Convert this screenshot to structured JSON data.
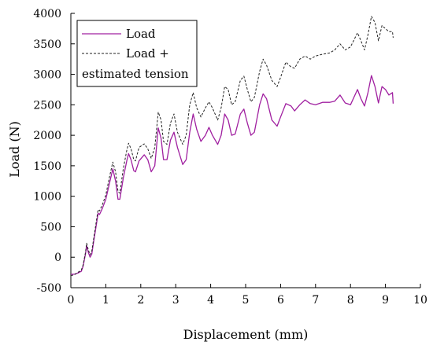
{
  "chart_data": {
    "type": "line",
    "title": "",
    "xlabel": "Displacement (mm)",
    "ylabel": "Load (N)",
    "xlim": [
      0,
      10
    ],
    "ylim": [
      -500,
      4000
    ],
    "xticks": [
      "0",
      "1",
      "2",
      "3",
      "4",
      "5",
      "6",
      "7",
      "8",
      "9",
      "10"
    ],
    "yticks": [
      "-500",
      "0",
      "500",
      "1000",
      "1500",
      "2000",
      "2500",
      "3000",
      "3500",
      "4000"
    ],
    "grid": false,
    "legend_position": "top-left",
    "legend": {
      "line1": "Load",
      "line2a": "Load +",
      "line2b": "estimated tension"
    },
    "series": [
      {
        "name": "Load",
        "color": "#a020a0",
        "style": "solid",
        "points": [
          [
            0.0,
            -280
          ],
          [
            0.1,
            -280
          ],
          [
            0.2,
            -260
          ],
          [
            0.3,
            -230
          ],
          [
            0.35,
            -150
          ],
          [
            0.42,
            50
          ],
          [
            0.45,
            190
          ],
          [
            0.5,
            80
          ],
          [
            0.55,
            0
          ],
          [
            0.6,
            50
          ],
          [
            0.65,
            250
          ],
          [
            0.72,
            500
          ],
          [
            0.78,
            720
          ],
          [
            0.82,
            700
          ],
          [
            0.9,
            800
          ],
          [
            1.0,
            950
          ],
          [
            1.1,
            1200
          ],
          [
            1.2,
            1450
          ],
          [
            1.28,
            1250
          ],
          [
            1.35,
            950
          ],
          [
            1.4,
            950
          ],
          [
            1.5,
            1300
          ],
          [
            1.6,
            1580
          ],
          [
            1.65,
            1700
          ],
          [
            1.72,
            1600
          ],
          [
            1.8,
            1420
          ],
          [
            1.85,
            1400
          ],
          [
            1.95,
            1580
          ],
          [
            2.1,
            1680
          ],
          [
            2.2,
            1600
          ],
          [
            2.3,
            1400
          ],
          [
            2.4,
            1500
          ],
          [
            2.5,
            2120
          ],
          [
            2.58,
            1950
          ],
          [
            2.65,
            1600
          ],
          [
            2.75,
            1600
          ],
          [
            2.85,
            1920
          ],
          [
            2.95,
            2050
          ],
          [
            3.05,
            1800
          ],
          [
            3.2,
            1520
          ],
          [
            3.3,
            1600
          ],
          [
            3.4,
            2050
          ],
          [
            3.5,
            2350
          ],
          [
            3.6,
            2100
          ],
          [
            3.72,
            1900
          ],
          [
            3.85,
            2000
          ],
          [
            3.95,
            2130
          ],
          [
            4.05,
            2000
          ],
          [
            4.2,
            1850
          ],
          [
            4.3,
            2000
          ],
          [
            4.4,
            2350
          ],
          [
            4.5,
            2250
          ],
          [
            4.6,
            2000
          ],
          [
            4.7,
            2020
          ],
          [
            4.85,
            2350
          ],
          [
            4.95,
            2430
          ],
          [
            5.05,
            2200
          ],
          [
            5.15,
            2000
          ],
          [
            5.25,
            2050
          ],
          [
            5.4,
            2500
          ],
          [
            5.5,
            2680
          ],
          [
            5.6,
            2600
          ],
          [
            5.75,
            2250
          ],
          [
            5.9,
            2150
          ],
          [
            6.0,
            2300
          ],
          [
            6.15,
            2520
          ],
          [
            6.3,
            2480
          ],
          [
            6.4,
            2400
          ],
          [
            6.55,
            2500
          ],
          [
            6.7,
            2580
          ],
          [
            6.85,
            2520
          ],
          [
            7.0,
            2500
          ],
          [
            7.2,
            2540
          ],
          [
            7.4,
            2540
          ],
          [
            7.55,
            2560
          ],
          [
            7.7,
            2660
          ],
          [
            7.85,
            2530
          ],
          [
            8.0,
            2500
          ],
          [
            8.2,
            2750
          ],
          [
            8.3,
            2600
          ],
          [
            8.4,
            2480
          ],
          [
            8.5,
            2700
          ],
          [
            8.6,
            2980
          ],
          [
            8.7,
            2800
          ],
          [
            8.8,
            2530
          ],
          [
            8.9,
            2800
          ],
          [
            9.0,
            2750
          ],
          [
            9.1,
            2660
          ],
          [
            9.2,
            2700
          ],
          [
            9.22,
            2520
          ]
        ]
      },
      {
        "name": "Load + estimated tension",
        "color": "#222222",
        "style": "dashed",
        "points": [
          [
            0.0,
            -300
          ],
          [
            0.1,
            -290
          ],
          [
            0.2,
            -250
          ],
          [
            0.3,
            -210
          ],
          [
            0.35,
            -130
          ],
          [
            0.42,
            80
          ],
          [
            0.45,
            230
          ],
          [
            0.5,
            120
          ],
          [
            0.55,
            40
          ],
          [
            0.6,
            100
          ],
          [
            0.65,
            300
          ],
          [
            0.72,
            560
          ],
          [
            0.78,
            780
          ],
          [
            0.82,
            760
          ],
          [
            0.9,
            860
          ],
          [
            1.0,
            1020
          ],
          [
            1.1,
            1300
          ],
          [
            1.2,
            1560
          ],
          [
            1.28,
            1400
          ],
          [
            1.35,
            1080
          ],
          [
            1.4,
            1050
          ],
          [
            1.5,
            1450
          ],
          [
            1.6,
            1750
          ],
          [
            1.65,
            1870
          ],
          [
            1.72,
            1780
          ],
          [
            1.8,
            1600
          ],
          [
            1.85,
            1580
          ],
          [
            1.95,
            1800
          ],
          [
            2.1,
            1860
          ],
          [
            2.2,
            1780
          ],
          [
            2.3,
            1620
          ],
          [
            2.4,
            1800
          ],
          [
            2.5,
            2380
          ],
          [
            2.58,
            2250
          ],
          [
            2.65,
            1900
          ],
          [
            2.75,
            1850
          ],
          [
            2.85,
            2200
          ],
          [
            2.95,
            2350
          ],
          [
            3.05,
            2050
          ],
          [
            3.2,
            1850
          ],
          [
            3.3,
            2000
          ],
          [
            3.4,
            2500
          ],
          [
            3.5,
            2700
          ],
          [
            3.6,
            2450
          ],
          [
            3.72,
            2300
          ],
          [
            3.85,
            2450
          ],
          [
            3.95,
            2550
          ],
          [
            4.05,
            2450
          ],
          [
            4.2,
            2250
          ],
          [
            4.3,
            2450
          ],
          [
            4.4,
            2800
          ],
          [
            4.5,
            2750
          ],
          [
            4.6,
            2500
          ],
          [
            4.7,
            2550
          ],
          [
            4.85,
            2900
          ],
          [
            4.95,
            2970
          ],
          [
            5.05,
            2750
          ],
          [
            5.15,
            2550
          ],
          [
            5.25,
            2620
          ],
          [
            5.4,
            3050
          ],
          [
            5.5,
            3250
          ],
          [
            5.6,
            3150
          ],
          [
            5.75,
            2900
          ],
          [
            5.9,
            2800
          ],
          [
            6.0,
            2950
          ],
          [
            6.15,
            3200
          ],
          [
            6.3,
            3120
          ],
          [
            6.4,
            3100
          ],
          [
            6.55,
            3250
          ],
          [
            6.7,
            3300
          ],
          [
            6.85,
            3250
          ],
          [
            7.0,
            3300
          ],
          [
            7.2,
            3330
          ],
          [
            7.4,
            3350
          ],
          [
            7.55,
            3400
          ],
          [
            7.7,
            3500
          ],
          [
            7.85,
            3400
          ],
          [
            8.0,
            3450
          ],
          [
            8.2,
            3680
          ],
          [
            8.3,
            3550
          ],
          [
            8.4,
            3400
          ],
          [
            8.5,
            3650
          ],
          [
            8.6,
            3950
          ],
          [
            8.7,
            3850
          ],
          [
            8.8,
            3550
          ],
          [
            8.9,
            3800
          ],
          [
            9.0,
            3750
          ],
          [
            9.1,
            3700
          ],
          [
            9.2,
            3700
          ],
          [
            9.22,
            3600
          ]
        ]
      }
    ]
  }
}
